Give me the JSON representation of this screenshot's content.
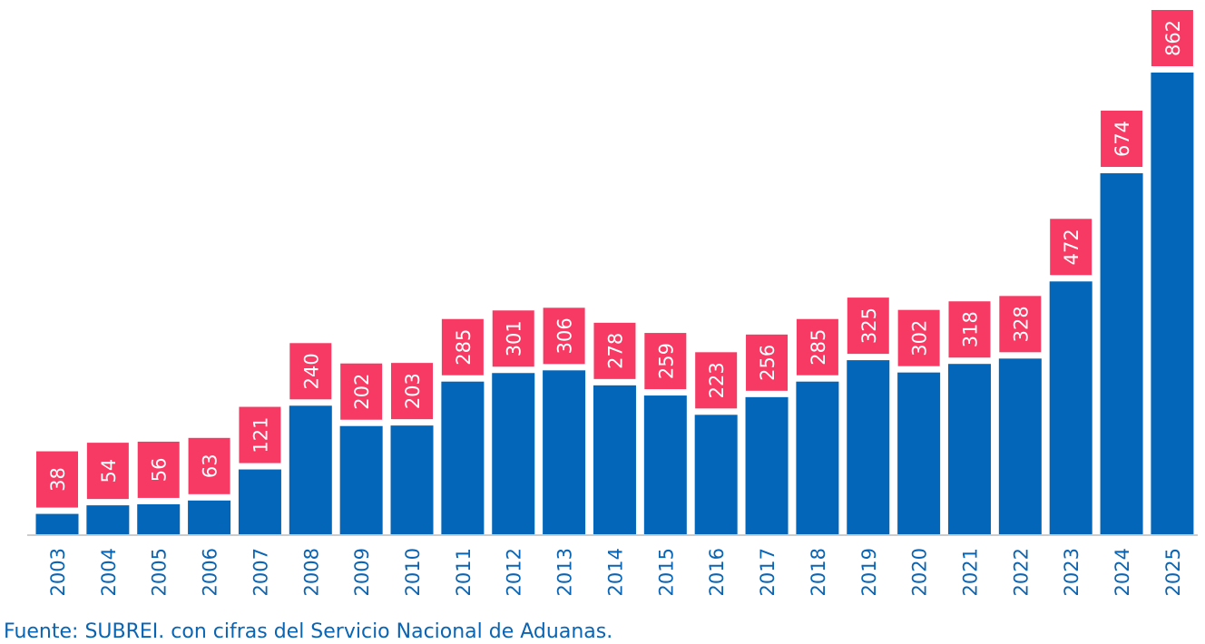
{
  "chart_data": {
    "type": "bar",
    "categories": [
      "2003",
      "2004",
      "2005",
      "2006",
      "2007",
      "2008",
      "2009",
      "2010",
      "2011",
      "2012",
      "2013",
      "2014",
      "2015",
      "2016",
      "2017",
      "2018",
      "2019",
      "2020",
      "2021",
      "2022",
      "2023",
      "2024",
      "2025"
    ],
    "values": [
      38,
      54,
      56,
      63,
      121,
      240,
      202,
      203,
      285,
      301,
      306,
      278,
      259,
      223,
      256,
      285,
      325,
      302,
      318,
      328,
      472,
      674,
      862
    ],
    "title": "",
    "xlabel": "",
    "ylabel": "",
    "ylim": [
      0,
      862
    ],
    "grid": false,
    "legend": "none",
    "colors": {
      "bar": "#0366b8",
      "label_bg": "#f73a63",
      "label_text": "#ffffff",
      "tick_text": "#0a64b4",
      "axis": "#cccccc"
    }
  },
  "source_note": "Fuente: SUBREI. con cifras del Servicio Nacional de Aduanas."
}
